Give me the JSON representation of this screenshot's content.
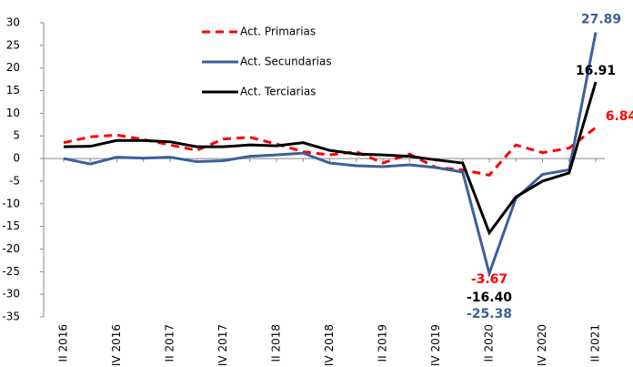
{
  "chart_data": {
    "type": "line",
    "categories": [
      "II 2016",
      null,
      "IV 2016",
      null,
      "II 2017",
      null,
      "IV 2017",
      null,
      "II 2018",
      null,
      "IV 2018",
      null,
      "II 2019",
      null,
      "IV 2019",
      null,
      "II 2020",
      null,
      "IV 2020",
      null,
      "II 2021"
    ],
    "series": [
      {
        "name": "Act. Primarias",
        "color": "#ff0000",
        "dash": true,
        "values": [
          3.5,
          4.8,
          5.2,
          4.2,
          3.0,
          1.8,
          4.3,
          4.7,
          3.2,
          1.5,
          0.8,
          1.5,
          -1.0,
          1.0,
          -2.0,
          -2.5,
          -3.67,
          3.0,
          1.3,
          2.3,
          6.84
        ],
        "value_labels": [
          null,
          null,
          null,
          null,
          null,
          null,
          null,
          null,
          null,
          null,
          null,
          null,
          null,
          null,
          null,
          null,
          "-3.67",
          null,
          null,
          null,
          "6.84"
        ]
      },
      {
        "name": "Act. Secundarias",
        "color": "#3c5f9c",
        "dash": false,
        "values": [
          0,
          -1.2,
          0.3,
          0.1,
          0.3,
          -0.7,
          -0.5,
          0.5,
          0.8,
          1.2,
          -1.0,
          -1.6,
          -1.8,
          -1.4,
          -2.0,
          -3.0,
          -25.38,
          -8.8,
          -3.5,
          -2.5,
          27.89
        ],
        "value_labels": [
          null,
          null,
          null,
          null,
          null,
          null,
          null,
          null,
          null,
          null,
          null,
          null,
          null,
          null,
          null,
          null,
          "-25.38",
          null,
          null,
          null,
          "27.89"
        ]
      },
      {
        "name": "Act. Terciarias",
        "color": "#000000",
        "dash": false,
        "values": [
          2.6,
          2.7,
          4.0,
          4.0,
          3.7,
          2.6,
          2.6,
          3.0,
          2.8,
          3.5,
          1.8,
          1.0,
          0.8,
          0.5,
          -0.3,
          -1.0,
          -16.4,
          -8.5,
          -5.0,
          -3.2,
          16.91
        ],
        "value_labels": [
          null,
          null,
          null,
          null,
          null,
          null,
          null,
          null,
          null,
          null,
          null,
          null,
          null,
          null,
          null,
          null,
          "-16.40",
          null,
          null,
          null,
          "16.91"
        ]
      }
    ],
    "ylim": [
      -35,
      30
    ],
    "yticks": [
      -35,
      -30,
      -25,
      -20,
      -15,
      -10,
      -5,
      0,
      5,
      10,
      15,
      20,
      25,
      30
    ],
    "grid": false,
    "legend": "top"
  }
}
